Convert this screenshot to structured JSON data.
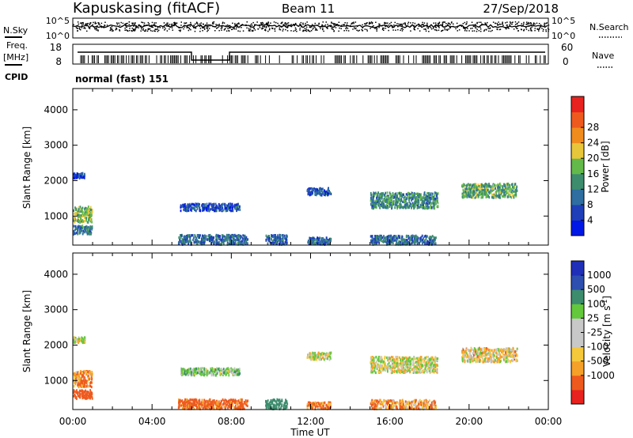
{
  "header": {
    "station": "Kapuskasing (fitACF)",
    "beam": "Beam 11",
    "date": "27/Sep/2018"
  },
  "side_labels": {
    "nsky": "N.Sky",
    "freq": "Freq.",
    "mhz": "[MHz]",
    "cpid": "CPID",
    "nsearch": "N.Search",
    "nave": "Nave"
  },
  "cpid_text": "normal (fast) 151",
  "x_axis": {
    "label": "Time UT",
    "ticks": [
      "00:00",
      "04:00",
      "08:00",
      "12:00",
      "16:00",
      "20:00",
      "00:00"
    ],
    "range_hours": [
      0,
      24
    ]
  },
  "noise_panel": {
    "left_ticks": [
      "10^5",
      "10^0"
    ],
    "right_ticks": [
      "10^5",
      "10^0"
    ]
  },
  "freq_panel": {
    "left_ticks": [
      "18",
      "8"
    ],
    "right_ticks": [
      "60",
      "0"
    ]
  },
  "colors": {
    "power": [
      "#0018e6",
      "#1f3fb8",
      "#2e6ea0",
      "#3d8c6e",
      "#63b94a",
      "#e8c63c",
      "#f08c1e",
      "#ee5a1e",
      "#e8221e"
    ],
    "velocity": [
      "#e8221e",
      "#ee5a1e",
      "#f5a028",
      "#f5c83c",
      "#c8c8c8",
      "#c8c8c8",
      "#63c83c",
      "#3d8c6e",
      "#2e4fb0",
      "#1f2fb8"
    ]
  },
  "chart_data": [
    {
      "type": "heatmap",
      "title": "",
      "xlabel": "Time UT",
      "ylabel": "Slant Range [km]",
      "xlim": [
        0,
        24
      ],
      "ylim": [
        180,
        4600
      ],
      "yticks": [
        1000,
        2000,
        3000,
        4000
      ],
      "colorbar": {
        "label": "Power [dB]",
        "range": [
          0,
          36
        ],
        "ticks": [
          "4",
          "8",
          "12",
          "16",
          "20",
          "24",
          "28"
        ]
      },
      "regions": [
        {
          "t0": 0.0,
          "t1": 0.95,
          "r0": 850,
          "r1": 1300,
          "value": 18
        },
        {
          "t0": 0.0,
          "t1": 0.95,
          "r0": 520,
          "r1": 760,
          "value": 11
        },
        {
          "t0": 0.0,
          "t1": 0.6,
          "r0": 2100,
          "r1": 2250,
          "value": 6
        },
        {
          "t0": 5.4,
          "t1": 8.4,
          "r0": 1180,
          "r1": 1380,
          "value": 7
        },
        {
          "t0": 5.3,
          "t1": 8.8,
          "r0": 230,
          "r1": 500,
          "value": 10
        },
        {
          "t0": 9.7,
          "t1": 10.8,
          "r0": 230,
          "r1": 500,
          "value": 9
        },
        {
          "t0": 11.8,
          "t1": 13.0,
          "r0": 1620,
          "r1": 1820,
          "value": 7
        },
        {
          "t0": 11.8,
          "t1": 13.0,
          "r0": 230,
          "r1": 420,
          "value": 9
        },
        {
          "t0": 15.0,
          "t1": 18.4,
          "r0": 1250,
          "r1": 1700,
          "value": 13
        },
        {
          "t0": 15.0,
          "t1": 18.3,
          "r0": 230,
          "r1": 480,
          "value": 10
        },
        {
          "t0": 19.6,
          "t1": 22.4,
          "r0": 1550,
          "r1": 1950,
          "value": 16
        }
      ]
    },
    {
      "type": "heatmap",
      "title": "",
      "xlabel": "Time UT",
      "ylabel": "Slant Range [km]",
      "xlim": [
        0,
        24
      ],
      "ylim": [
        180,
        4600
      ],
      "yticks": [
        1000,
        2000,
        3000,
        4000
      ],
      "colorbar": {
        "label": "Velocity [m s^-1]",
        "ticks": [
          "1000",
          "500",
          "100",
          "25",
          "-25",
          "-100",
          "-500",
          "-1000"
        ]
      },
      "regions": [
        {
          "t0": 0.0,
          "t1": 0.95,
          "r0": 850,
          "r1": 1300,
          "value": -100
        },
        {
          "t0": 0.0,
          "t1": 0.95,
          "r0": 520,
          "r1": 760,
          "value": -300
        },
        {
          "t0": 0.0,
          "t1": 0.6,
          "r0": 2100,
          "r1": 2250,
          "value": 0
        },
        {
          "t0": 5.4,
          "t1": 8.4,
          "r0": 1180,
          "r1": 1380,
          "value": 50
        },
        {
          "t0": 5.3,
          "t1": 8.8,
          "r0": 230,
          "r1": 500,
          "value": -150
        },
        {
          "t0": 9.7,
          "t1": 10.8,
          "r0": 230,
          "r1": 500,
          "value": 400
        },
        {
          "t0": 11.8,
          "t1": 13.0,
          "r0": 1620,
          "r1": 1820,
          "value": 0
        },
        {
          "t0": 11.8,
          "t1": 13.0,
          "r0": 230,
          "r1": 420,
          "value": -100
        },
        {
          "t0": 15.0,
          "t1": 18.4,
          "r0": 1250,
          "r1": 1700,
          "value": 0
        },
        {
          "t0": 15.0,
          "t1": 18.3,
          "r0": 230,
          "r1": 480,
          "value": -80
        },
        {
          "t0": 19.6,
          "t1": 22.4,
          "r0": 1550,
          "r1": 1950,
          "value": -30
        }
      ]
    }
  ]
}
